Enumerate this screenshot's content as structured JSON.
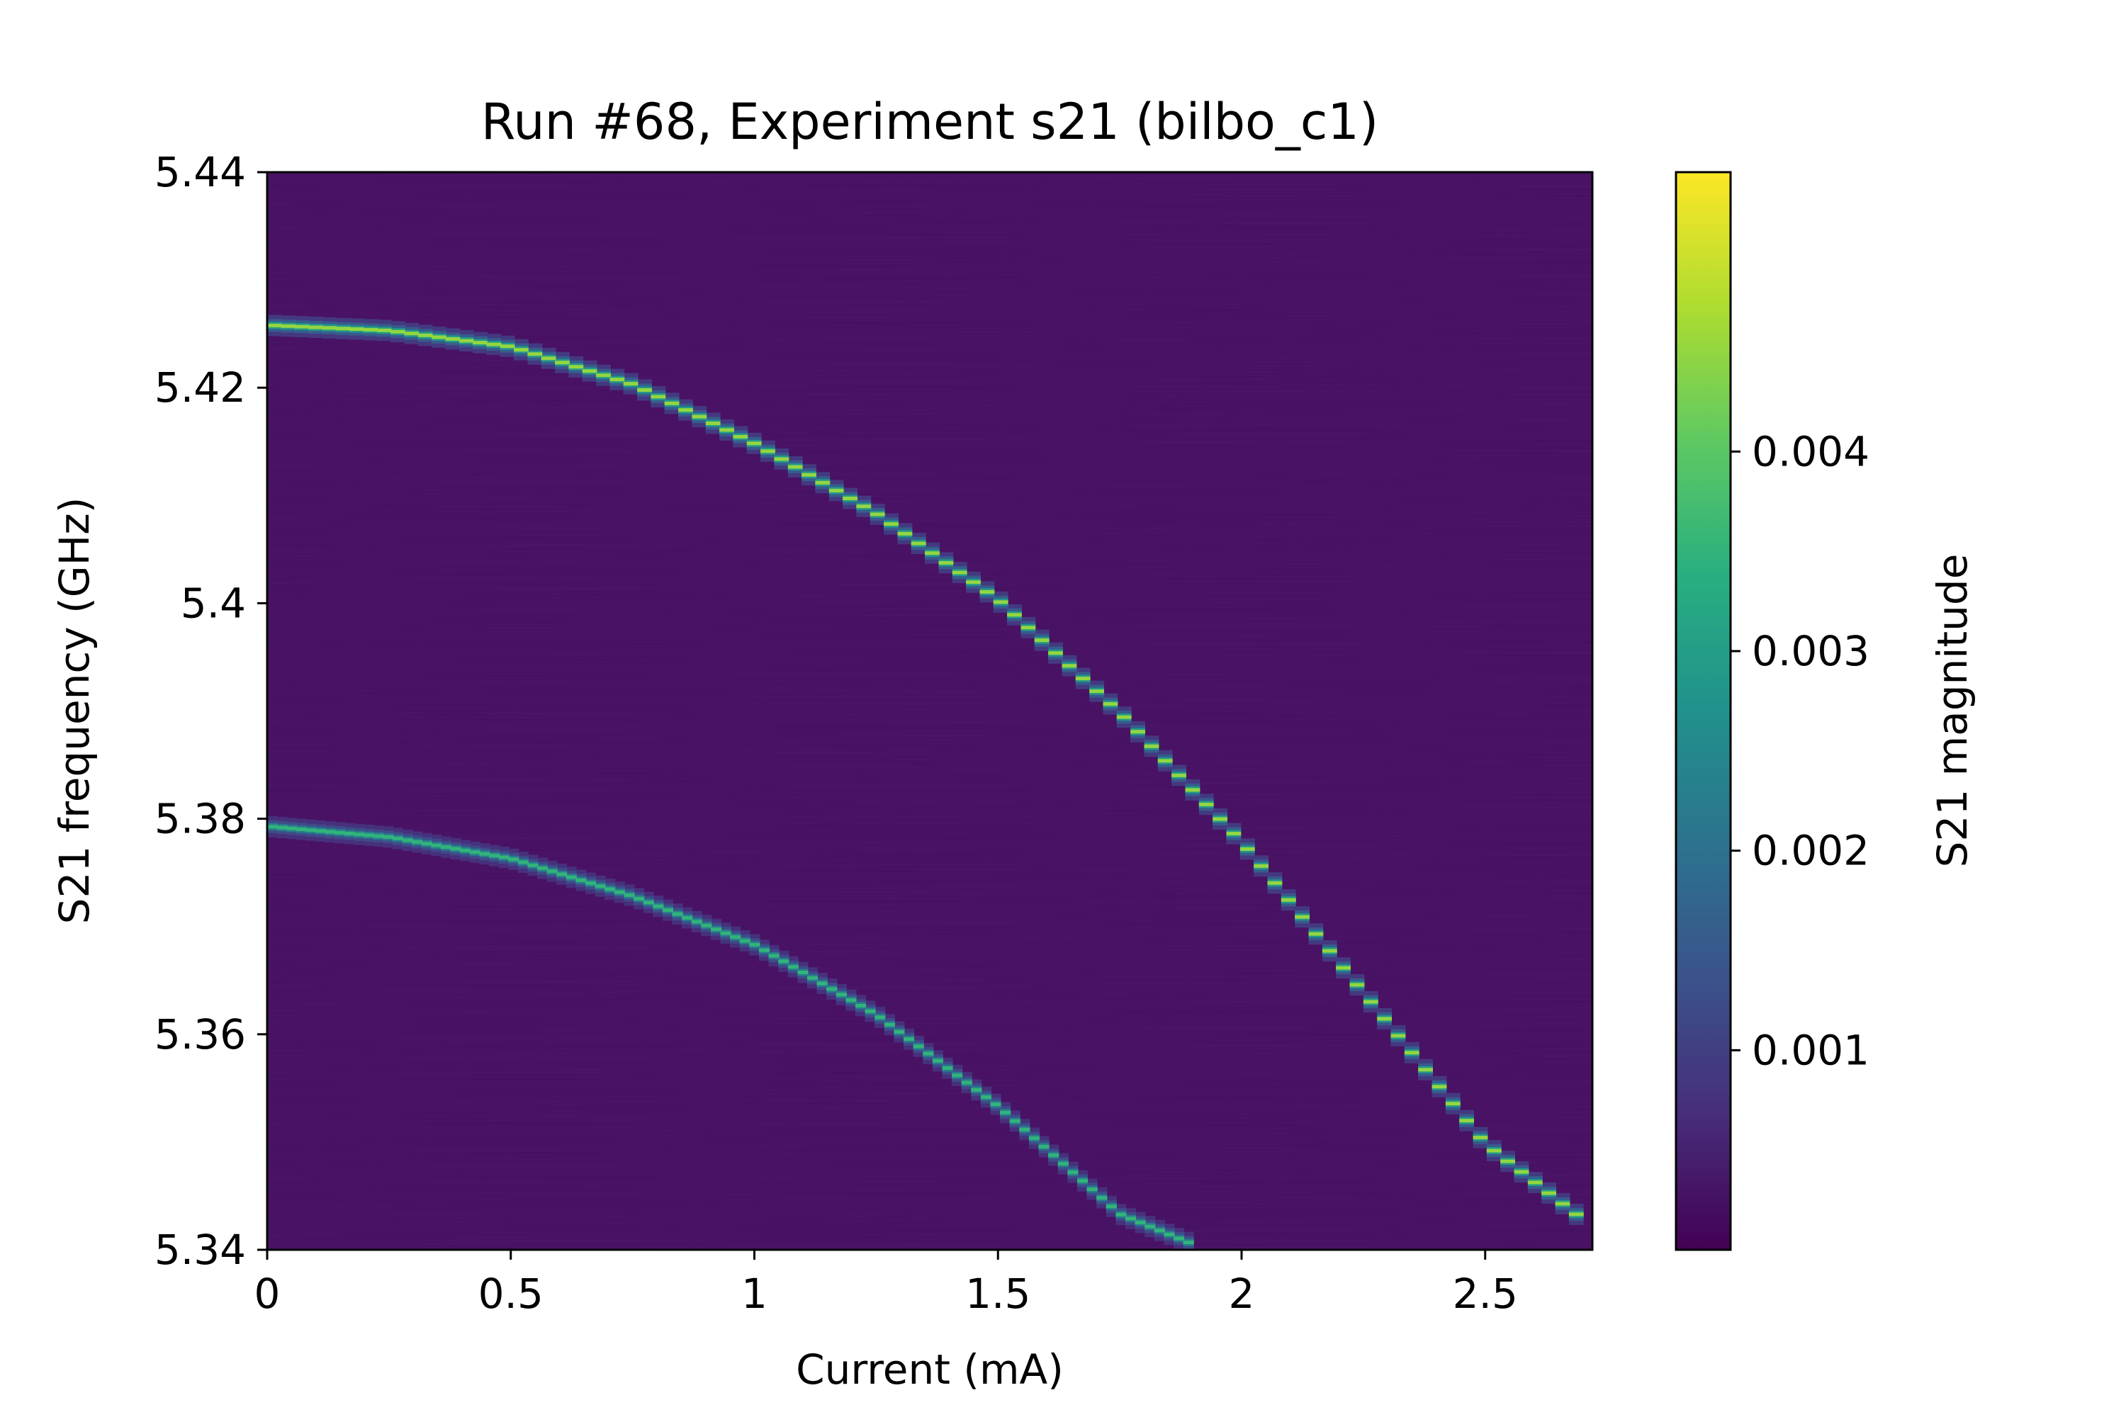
{
  "chart_data": {
    "type": "heatmap",
    "title": "Run #68, Experiment s21 (bilbo_c1)",
    "xlabel": "Current (mA)",
    "ylabel": "S21 frequency (GHz)",
    "colorbar_label": "S21 magnitude",
    "colormap": "viridis",
    "xlim": [
      0.0,
      2.72
    ],
    "ylim": [
      5.34,
      5.44
    ],
    "clim": [
      0.0,
      0.0054
    ],
    "x_ticks": [
      {
        "value": 0,
        "label": "0"
      },
      {
        "value": 0.5,
        "label": "0.5"
      },
      {
        "value": 1,
        "label": "1"
      },
      {
        "value": 1.5,
        "label": "1.5"
      },
      {
        "value": 2,
        "label": "2"
      },
      {
        "value": 2.5,
        "label": "2.5"
      }
    ],
    "y_ticks": [
      {
        "value": 5.34,
        "label": "5.34"
      },
      {
        "value": 5.36,
        "label": "5.36"
      },
      {
        "value": 5.38,
        "label": "5.38"
      },
      {
        "value": 5.4,
        "label": "5.4"
      },
      {
        "value": 5.42,
        "label": "5.42"
      },
      {
        "value": 5.44,
        "label": "5.44"
      }
    ],
    "colorbar_ticks": [
      {
        "value": 0.001,
        "label": "0.001"
      },
      {
        "value": 0.002,
        "label": "0.002"
      },
      {
        "value": 0.003,
        "label": "0.003"
      },
      {
        "value": 0.004,
        "label": "0.004"
      }
    ],
    "background_magnitude": 0.0002,
    "series": [
      {
        "points": [
          [
            0.0,
            5.4258
          ],
          [
            0.25,
            5.4253
          ],
          [
            0.5,
            5.4238
          ],
          [
            0.75,
            5.4203
          ],
          [
            1.0,
            5.4148
          ],
          [
            1.25,
            5.4083
          ],
          [
            1.5,
            5.4003
          ],
          [
            1.75,
            5.3898
          ],
          [
            2.0,
            5.3778
          ],
          [
            2.25,
            5.3638
          ],
          [
            2.5,
            5.3498
          ],
          [
            2.7,
            5.3428
          ]
        ],
        "peak_magnitude": 0.0045
      },
      {
        "points": [
          [
            0.0,
            5.3793
          ],
          [
            0.25,
            5.3783
          ],
          [
            0.5,
            5.3763
          ],
          [
            0.75,
            5.3728
          ],
          [
            1.0,
            5.3683
          ],
          [
            1.25,
            5.3618
          ],
          [
            1.5,
            5.3533
          ],
          [
            1.75,
            5.3433
          ],
          [
            1.9,
            5.3405
          ]
        ],
        "peak_magnitude": 0.0035
      }
    ]
  }
}
